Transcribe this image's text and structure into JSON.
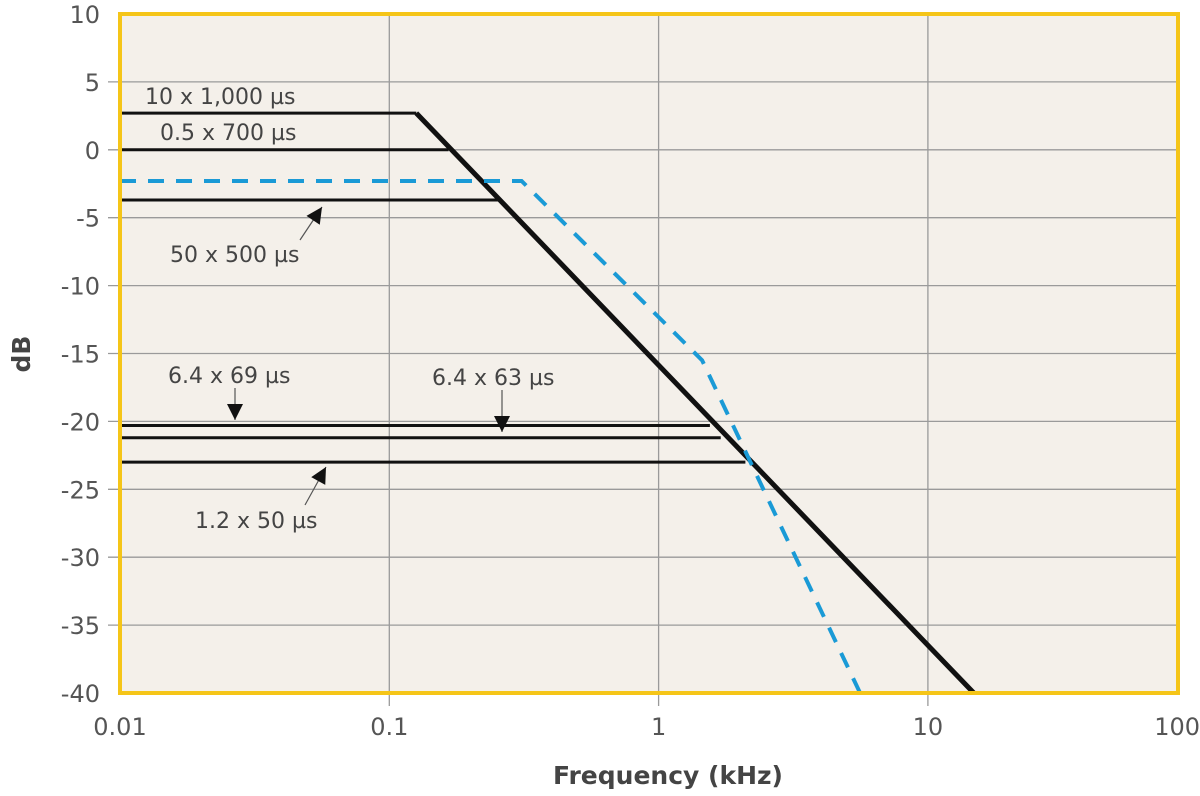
{
  "chart_data": {
    "type": "line",
    "title": "",
    "xlabel": "Frequency (kHz)",
    "ylabel": "dB",
    "xscale": "log",
    "xlim": [
      0.01,
      100
    ],
    "ylim": [
      -40,
      10
    ],
    "xticks": [
      "0.01",
      "0.1",
      "1",
      "10",
      "100"
    ],
    "xtick_values": [
      0.01,
      0.1,
      1,
      10,
      100
    ],
    "yticks": [
      10,
      5,
      0,
      -5,
      -10,
      -15,
      -20,
      -25,
      -30,
      -35,
      -40
    ],
    "grid": true,
    "colors": {
      "background": "#f4f0ea",
      "frame": "#f5c518",
      "grid": "#9a9a9a",
      "black": "#111111",
      "blue": "#1a9ad6"
    },
    "series": [
      {
        "label": "10 x 1,000 µs",
        "style": "solid",
        "color": "#111111",
        "points": [
          [
            0.01,
            2.7
          ],
          [
            0.126,
            2.7
          ]
        ]
      },
      {
        "label": "0.5 x 700 µs",
        "style": "solid",
        "color": "#111111",
        "points": [
          [
            0.01,
            0
          ],
          [
            0.166,
            0
          ]
        ]
      },
      {
        "label": "50 x 500 µs",
        "style": "solid",
        "color": "#111111",
        "points": [
          [
            0.01,
            -3.7
          ],
          [
            0.26,
            -3.7
          ]
        ]
      },
      {
        "label": "6.4 x 69 µs",
        "style": "solid",
        "color": "#111111",
        "points": [
          [
            0.01,
            -20.3
          ],
          [
            1.55,
            -20.3
          ]
        ]
      },
      {
        "label": "6.4 x 63 µs",
        "style": "solid",
        "color": "#111111",
        "points": [
          [
            0.01,
            -21.2
          ],
          [
            1.7,
            -21.2
          ]
        ]
      },
      {
        "label": "1.2 x 50 µs",
        "style": "solid",
        "color": "#111111",
        "points": [
          [
            0.01,
            -23.0
          ],
          [
            2.1,
            -23.0
          ]
        ]
      },
      {
        "style": "solid-thick",
        "color": "#111111",
        "points": [
          [
            0.126,
            2.7
          ],
          [
            14.8,
            -40
          ]
        ]
      },
      {
        "style": "dashed",
        "color": "#1a9ad6",
        "points": [
          [
            0.01,
            -2.3
          ],
          [
            0.31,
            -2.3
          ],
          [
            1.45,
            -15.5
          ],
          [
            5.6,
            -40
          ]
        ]
      }
    ],
    "annotations": [
      {
        "text": "10 x 1,000 µs"
      },
      {
        "text": "0.5 x 700 µs"
      },
      {
        "text": "50 x 500 µs"
      },
      {
        "text": "6.4 x 69 µs"
      },
      {
        "text": "6.4 x 63 µs"
      },
      {
        "text": "1.2 x 50 µs"
      }
    ]
  }
}
